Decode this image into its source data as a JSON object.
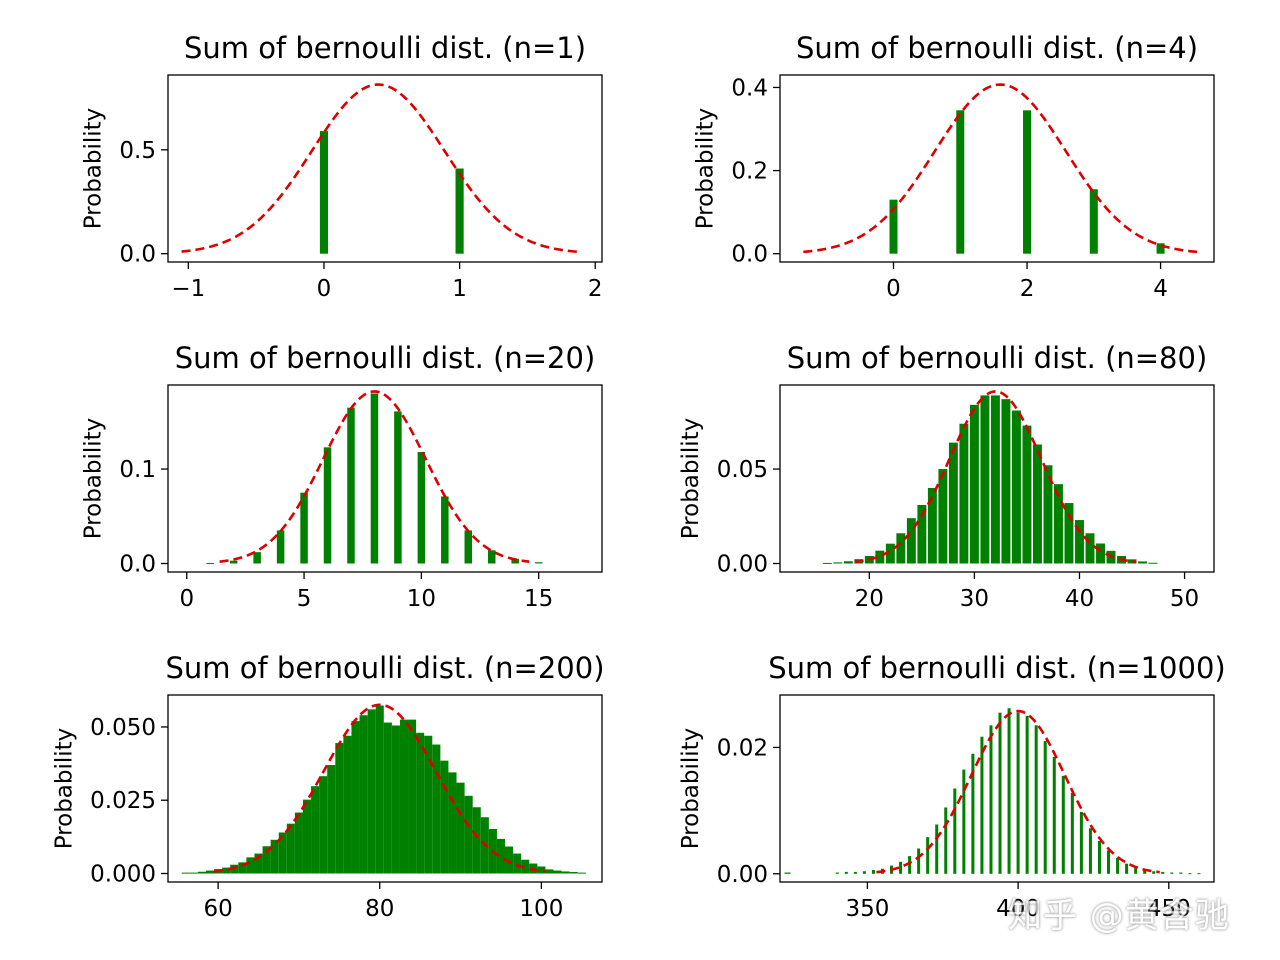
{
  "colors": {
    "bar": "#008000",
    "curve": "#dd0000",
    "axis": "#000000"
  },
  "watermark": "知乎 @黄含驰",
  "chart_data": [
    {
      "type": "bar",
      "title": "Sum of bernoulli dist. (n=1)",
      "ylabel": "Probability",
      "n": 1,
      "p": 0.4,
      "xlim": [
        -1.15,
        2.05
      ],
      "ylim": [
        -0.04,
        0.86
      ],
      "xticks": [
        -1,
        0,
        1,
        2
      ],
      "xtick_labels": [
        "−1",
        "0",
        "1",
        "2"
      ],
      "yticks": [
        0.0,
        0.5
      ],
      "ytick_labels": [
        "0.0",
        "0.5"
      ],
      "bar_width": 0.06,
      "x": [
        0,
        1
      ],
      "values": [
        0.59,
        0.41
      ],
      "curve": {
        "mean": 0.4,
        "std": 0.49,
        "from": -1.05,
        "to": 1.9
      }
    },
    {
      "type": "bar",
      "title": "Sum of bernoulli dist. (n=4)",
      "ylabel": "Probability",
      "n": 4,
      "p": 0.4,
      "xlim": [
        -1.7,
        4.8
      ],
      "ylim": [
        -0.02,
        0.43
      ],
      "xticks": [
        0,
        2,
        4
      ],
      "xtick_labels": [
        "0",
        "2",
        "4"
      ],
      "yticks": [
        0.0,
        0.2,
        0.4
      ],
      "ytick_labels": [
        "0.0",
        "0.2",
        "0.4"
      ],
      "bar_width": 0.12,
      "x": [
        0,
        1,
        2,
        3,
        4
      ],
      "values": [
        0.13,
        0.345,
        0.345,
        0.155,
        0.025
      ],
      "curve": {
        "mean": 1.6,
        "std": 0.98,
        "from": -1.35,
        "to": 4.55
      }
    },
    {
      "type": "bar",
      "title": "Sum of bernoulli dist. (n=20)",
      "ylabel": "Probability",
      "n": 20,
      "p": 0.4,
      "xlim": [
        -0.8,
        17.7
      ],
      "ylim": [
        -0.009,
        0.189
      ],
      "xticks": [
        0,
        5,
        10,
        15
      ],
      "xtick_labels": [
        "0",
        "5",
        "10",
        "15"
      ],
      "yticks": [
        0.0,
        0.1
      ],
      "ytick_labels": [
        "0.0",
        "0.1"
      ],
      "bar_width": 0.32,
      "x": [
        1,
        2,
        3,
        4,
        5,
        6,
        7,
        8,
        9,
        10,
        11,
        12,
        13,
        14,
        15
      ],
      "values": [
        0.0005,
        0.003,
        0.012,
        0.035,
        0.075,
        0.123,
        0.165,
        0.18,
        0.161,
        0.118,
        0.071,
        0.035,
        0.014,
        0.005,
        0.0013
      ],
      "curve": {
        "mean": 8,
        "std": 2.19,
        "from": 1.4,
        "to": 14.6
      }
    },
    {
      "type": "bar",
      "title": "Sum of bernoulli dist. (n=80)",
      "ylabel": "Probability",
      "n": 80,
      "p": 0.4,
      "xlim": [
        11.5,
        52.8
      ],
      "ylim": [
        -0.0045,
        0.0945
      ],
      "xticks": [
        20,
        30,
        40,
        50
      ],
      "xtick_labels": [
        "20",
        "30",
        "40",
        "50"
      ],
      "yticks": [
        0.0,
        0.05
      ],
      "ytick_labels": [
        "0.00",
        "0.05"
      ],
      "bar_width": 0.85,
      "x": [
        16,
        17,
        18,
        19,
        20,
        21,
        22,
        23,
        24,
        25,
        26,
        27,
        28,
        29,
        30,
        31,
        32,
        33,
        34,
        35,
        36,
        37,
        38,
        39,
        40,
        41,
        42,
        43,
        44,
        45,
        46,
        47
      ],
      "values": [
        0.0003,
        0.0006,
        0.0012,
        0.0023,
        0.004,
        0.0068,
        0.0105,
        0.016,
        0.024,
        0.031,
        0.04,
        0.05,
        0.064,
        0.074,
        0.084,
        0.089,
        0.089,
        0.087,
        0.081,
        0.073,
        0.063,
        0.052,
        0.042,
        0.032,
        0.023,
        0.016,
        0.0106,
        0.0067,
        0.004,
        0.0022,
        0.0011,
        0.0004
      ],
      "curve": {
        "mean": 32,
        "std": 4.38,
        "from": 18.6,
        "to": 45.4
      }
    },
    {
      "type": "bar",
      "title": "Sum of bernoulli dist. (n=200)",
      "ylabel": "Probability",
      "n": 200,
      "p": 0.4,
      "xlim": [
        53.8,
        107.5
      ],
      "ylim": [
        -0.0029,
        0.0609
      ],
      "xticks": [
        60,
        80,
        100
      ],
      "xtick_labels": [
        "60",
        "80",
        "100"
      ],
      "yticks": [
        0.0,
        0.025,
        0.05
      ],
      "ytick_labels": [
        "0.000",
        "0.025",
        "0.050"
      ],
      "bar_width": 1.0,
      "x": [
        56,
        57,
        58,
        59,
        60,
        61,
        62,
        63,
        64,
        65,
        66,
        67,
        68,
        69,
        70,
        71,
        72,
        73,
        74,
        75,
        76,
        77,
        78,
        79,
        80,
        81,
        82,
        83,
        84,
        85,
        86,
        87,
        88,
        89,
        90,
        91,
        92,
        93,
        94,
        95,
        96,
        97,
        98,
        99,
        100,
        101,
        102,
        103,
        104,
        105
      ],
      "values": [
        0.0003,
        0.0003,
        0.0006,
        0.001,
        0.0015,
        0.002,
        0.003,
        0.0038,
        0.0055,
        0.0068,
        0.0093,
        0.0115,
        0.014,
        0.017,
        0.0208,
        0.0252,
        0.0298,
        0.0332,
        0.037,
        0.0445,
        0.047,
        0.052,
        0.054,
        0.056,
        0.0573,
        0.0515,
        0.0505,
        0.0525,
        0.0525,
        0.048,
        0.047,
        0.044,
        0.0385,
        0.0345,
        0.031,
        0.0265,
        0.0226,
        0.0192,
        0.0152,
        0.0118,
        0.0092,
        0.0068,
        0.0047,
        0.0034,
        0.0024,
        0.0014,
        0.001,
        0.0007,
        0.0005,
        0.0003
      ],
      "curve": {
        "mean": 80,
        "std": 6.93,
        "from": 59.5,
        "to": 100.5
      }
    },
    {
      "type": "bar",
      "title": "Sum of bernoulli dist. (n=1000)",
      "ylabel": "Probability",
      "n": 1000,
      "p": 0.4,
      "xlim": [
        321,
        465
      ],
      "ylim": [
        -0.0013,
        0.0283
      ],
      "xticks": [
        350,
        400,
        450
      ],
      "xtick_labels": [
        "350",
        "400",
        "450"
      ],
      "yticks": [
        0.0,
        0.02
      ],
      "ytick_labels": [
        "0.00",
        "0.02"
      ],
      "bar_width": 1.0,
      "x": [
        323,
        324,
        340,
        343,
        346,
        349,
        352,
        355,
        358,
        361,
        364,
        367,
        370,
        373,
        376,
        379,
        382,
        385,
        388,
        391,
        394,
        397,
        400,
        403,
        406,
        409,
        412,
        415,
        418,
        421,
        424,
        427,
        430,
        433,
        436,
        439,
        442,
        445,
        448,
        451,
        454,
        457,
        460
      ],
      "values": [
        0.0002,
        0.0002,
        0.0002,
        0.0003,
        0.0003,
        0.0004,
        0.0006,
        0.0008,
        0.0013,
        0.0019,
        0.0028,
        0.004,
        0.0058,
        0.0078,
        0.0105,
        0.0135,
        0.0165,
        0.019,
        0.0217,
        0.0235,
        0.0255,
        0.0262,
        0.0255,
        0.025,
        0.0235,
        0.021,
        0.0185,
        0.0155,
        0.0128,
        0.0098,
        0.0072,
        0.0052,
        0.0037,
        0.0025,
        0.0016,
        0.001,
        0.0006,
        0.0004,
        0.0003,
        0.0002,
        0.0002,
        0.0001,
        0.0001
      ],
      "curve": {
        "mean": 400,
        "std": 15.49,
        "from": 353,
        "to": 447
      }
    }
  ]
}
